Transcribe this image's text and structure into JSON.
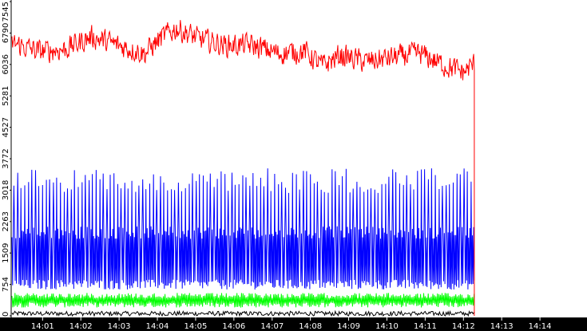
{
  "chart_data": {
    "type": "line",
    "title": "",
    "xlabel": "",
    "ylabel": "",
    "ylim": [
      0,
      7545
    ],
    "grid": false,
    "legend": "none",
    "colors": {
      "background": "#ffffff",
      "axis_bar": "#000000",
      "tick_text_x": "#ffffff",
      "tick_text_y": "#000000"
    },
    "y_ticks": [
      "0",
      "754",
      "1509",
      "2263",
      "3018",
      "3772",
      "4527",
      "5281",
      "6036",
      "6790",
      "7545"
    ],
    "x_ticks": [
      "14:01",
      "14:02",
      "14:03",
      "14:04",
      "14:05",
      "14:06",
      "14:07",
      "14:08",
      "14:09",
      "14:10",
      "14:11",
      "14:12",
      "14:13",
      "14:14"
    ],
    "x_range": [
      "14:00:12",
      "14:14:55"
    ],
    "series": [
      {
        "color": "#ff0000",
        "x": [
          "14:00:12",
          "14:00:54",
          "14:01:35",
          "14:02:17",
          "14:02:58",
          "14:03:40",
          "14:04:08",
          "14:04:30",
          "14:05:05",
          "14:05:46",
          "14:06:28",
          "14:07:09",
          "14:07:51",
          "14:08:18",
          "14:08:46",
          "14:09:28",
          "14:10:09",
          "14:10:51",
          "14:11:32",
          "14:12:00",
          "14:12:17"
        ],
        "y": [
          6550,
          6350,
          6400,
          6700,
          6500,
          6300,
          6700,
          6900,
          6650,
          6500,
          6500,
          6300,
          6350,
          6000,
          6250,
          6100,
          6200,
          6300,
          6000,
          5850,
          6050
        ],
        "noise": 250
      },
      {
        "color": "#0000ff",
        "x": [
          "14:00:12",
          "14:12:17"
        ],
        "peaks": [
          3250,
          3250
        ],
        "band_high": [
          2000,
          2000
        ],
        "band_low": [
          750,
          750
        ],
        "period": 5.6
      },
      {
        "color": "#00ff00",
        "x": [
          "14:00:12",
          "14:12:17"
        ],
        "y_high": [
          550,
          550
        ],
        "y_low": [
          200,
          200
        ]
      },
      {
        "color": "#000000",
        "x": [
          "14:00:12",
          "14:12:17"
        ],
        "y_high": [
          110,
          110
        ],
        "y_low": [
          0,
          0
        ]
      }
    ]
  }
}
